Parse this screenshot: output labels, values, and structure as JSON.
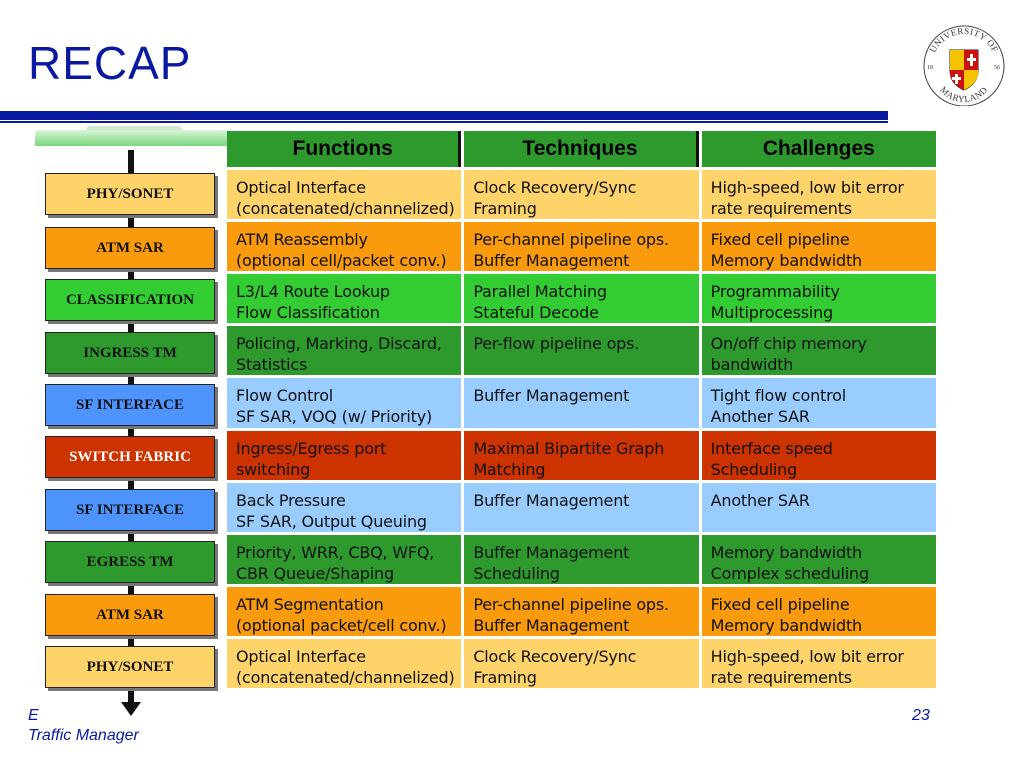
{
  "slide": {
    "title": "RECAP",
    "footer_line1": "E",
    "footer_line2": "Traffic Manager",
    "page_number": "23"
  },
  "logo": {
    "text_top": "UNIVERSITY OF",
    "text_bottom": "MARYLAND",
    "year_left": "18",
    "year_right": "56"
  },
  "colors": {
    "header_green": "#2e9a2e",
    "light_orange": "#fdd36a",
    "orange": "#f99b0c",
    "bright_green": "#33cc33",
    "dark_green": "#2e9a2e",
    "light_blue": "#99ccff",
    "blue": "#4d94ff",
    "red": "#cc3300",
    "title_blue": "#0a1aa0"
  },
  "table": {
    "headers": [
      "Functions",
      "Techniques",
      "Challenges"
    ],
    "rows": [
      {
        "color": "#fdd36a",
        "cells": [
          "Optical Interface\n(concatenated/channelized)",
          "Clock Recovery/Sync\nFraming",
          "High-speed, low bit error\nrate requirements"
        ]
      },
      {
        "color": "#f99b0c",
        "cells": [
          "ATM Reassembly\n(optional cell/packet conv.)",
          "Per-channel pipeline ops.\nBuffer Management",
          "Fixed cell pipeline\nMemory bandwidth"
        ]
      },
      {
        "color": "#33cc33",
        "cells": [
          "L3/L4 Route Lookup\nFlow Classification",
          "Parallel Matching\nStateful Decode",
          "Programmability\nMultiprocessing"
        ]
      },
      {
        "color": "#2e9a2e",
        "cells": [
          "Policing, Marking, Discard,\nStatistics",
          "Per-flow pipeline ops.",
          "On/off chip memory\nbandwidth"
        ]
      },
      {
        "color": "#99ccff",
        "cells": [
          "Flow Control\nSF SAR, VOQ (w/ Priority)",
          "Buffer Management",
          "Tight flow control\nAnother SAR"
        ]
      },
      {
        "color": "#cc3300",
        "cells": [
          "Ingress/Egress port switching",
          "Maximal Bipartite Graph\nMatching",
          "Interface speed\nScheduling"
        ]
      },
      {
        "color": "#99ccff",
        "cells": [
          "Back Pressure\nSF SAR, Output Queuing",
          "Buffer Management",
          "Another SAR"
        ]
      },
      {
        "color": "#2e9a2e",
        "cells": [
          "Priority, WRR, CBQ, WFQ,\nCBR Queue/Shaping",
          "Buffer Management\nScheduling",
          "Memory bandwidth\nComplex scheduling"
        ]
      },
      {
        "color": "#f99b0c",
        "cells": [
          "ATM Segmentation\n(optional packet/cell conv.)",
          "Per-channel pipeline ops.\nBuffer Management",
          "Fixed cell pipeline\nMemory bandwidth"
        ]
      },
      {
        "color": "#fdd36a",
        "cells": [
          "Optical Interface\n(concatenated/channelized)",
          "Clock Recovery/Sync\nFraming",
          "High-speed, low bit error\nrate requirements"
        ]
      }
    ]
  },
  "stages": [
    {
      "label": "PHY/SONET",
      "color": "#fdd36a"
    },
    {
      "label": "ATM SAR",
      "color": "#f99b0c"
    },
    {
      "label": "CLASSIFICATION",
      "color": "#33cc33"
    },
    {
      "label": "INGRESS TM",
      "color": "#2e9a2e"
    },
    {
      "label": "SF INTERFACE",
      "color": "#4d94ff"
    },
    {
      "label": "SWITCH FABRIC",
      "color": "#cc3300"
    },
    {
      "label": "SF INTERFACE",
      "color": "#4d94ff"
    },
    {
      "label": "EGRESS TM",
      "color": "#2e9a2e"
    },
    {
      "label": "ATM SAR",
      "color": "#f99b0c"
    },
    {
      "label": "PHY/SONET",
      "color": "#fdd36a"
    }
  ]
}
